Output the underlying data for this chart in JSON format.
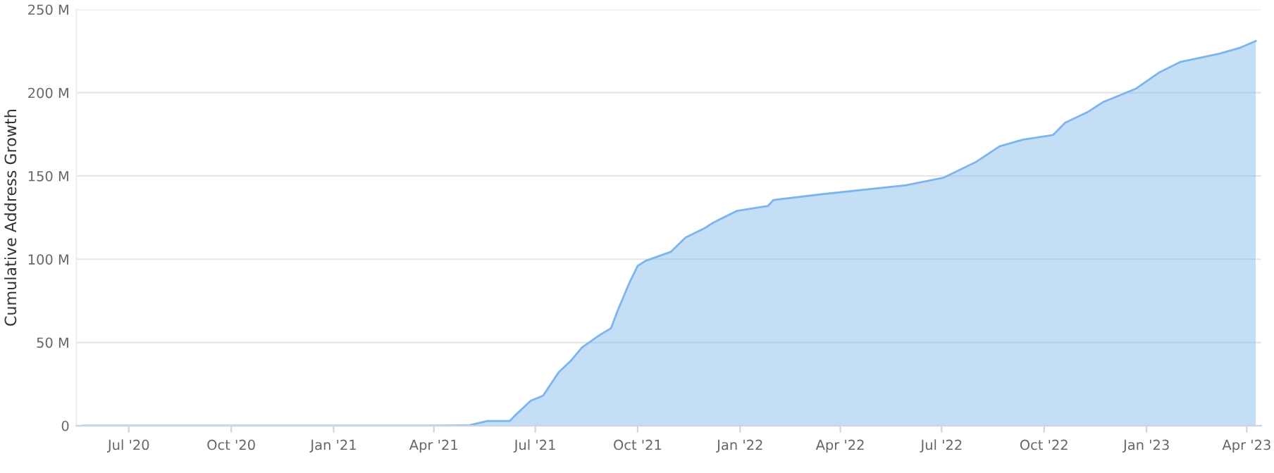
{
  "chart_data": {
    "type": "area",
    "ylabel": "Cumulative Address Growth",
    "x": [
      "2020-05-21",
      "2021-03-27",
      "2021-05-03",
      "2021-05-19",
      "2021-06-08",
      "2021-06-13",
      "2021-06-27",
      "2021-07-08",
      "2021-07-22",
      "2021-08-02",
      "2021-08-12",
      "2021-08-28",
      "2021-09-07",
      "2021-09-13",
      "2021-09-23",
      "2021-10-01",
      "2021-10-08",
      "2021-10-31",
      "2021-11-13",
      "2021-11-30",
      "2021-12-08",
      "2021-12-29",
      "2022-01-26",
      "2022-01-31",
      "2022-03-15",
      "2022-05-30",
      "2022-07-03",
      "2022-08-01",
      "2022-08-22",
      "2022-09-12",
      "2022-10-09",
      "2022-10-20",
      "2022-11-10",
      "2022-11-23",
      "2022-12-22",
      "2023-01-12",
      "2023-01-31",
      "2023-03-07",
      "2023-03-26",
      "2023-04-09"
    ],
    "series": [
      {
        "color": "#7cb5ec",
        "values": [
          0,
          0,
          0.3,
          2.8,
          2.8,
          6.2,
          15,
          18,
          32,
          39,
          47,
          54.5,
          58.5,
          69,
          85,
          96,
          99,
          104.5,
          113,
          118.6,
          122,
          129,
          132,
          135.6,
          139,
          144.4,
          149,
          158.5,
          167.8,
          171.8,
          174.6,
          182,
          188.7,
          194.4,
          202.3,
          212,
          218.4,
          223.4,
          227,
          231
        ]
      }
    ],
    "xlim": [
      "2020-05-15",
      "2023-04-14"
    ],
    "xticks": [
      {
        "value": "2020-07-01",
        "label": "Jul '20"
      },
      {
        "value": "2020-10-01",
        "label": "Oct '20"
      },
      {
        "value": "2021-01-01",
        "label": "Jan '21"
      },
      {
        "value": "2021-04-01",
        "label": "Apr '21"
      },
      {
        "value": "2021-07-01",
        "label": "Jul '21"
      },
      {
        "value": "2021-10-01",
        "label": "Oct '21"
      },
      {
        "value": "2022-01-01",
        "label": "Jan '22"
      },
      {
        "value": "2022-04-01",
        "label": "Apr '22"
      },
      {
        "value": "2022-07-01",
        "label": "Jul '22"
      },
      {
        "value": "2022-10-01",
        "label": "Oct '22"
      },
      {
        "value": "2023-01-01",
        "label": "Jan '23"
      },
      {
        "value": "2023-04-01",
        "label": "Apr '23"
      }
    ],
    "ylim": [
      0,
      250
    ],
    "yticks": [
      0,
      {
        "value": 50,
        "label": "50 M"
      },
      {
        "value": 100,
        "label": "100 M"
      },
      {
        "value": 150,
        "label": "150 M"
      },
      {
        "value": 200,
        "label": "200 M"
      },
      {
        "value": 250,
        "label": "250 M"
      }
    ],
    "grid": "y"
  }
}
